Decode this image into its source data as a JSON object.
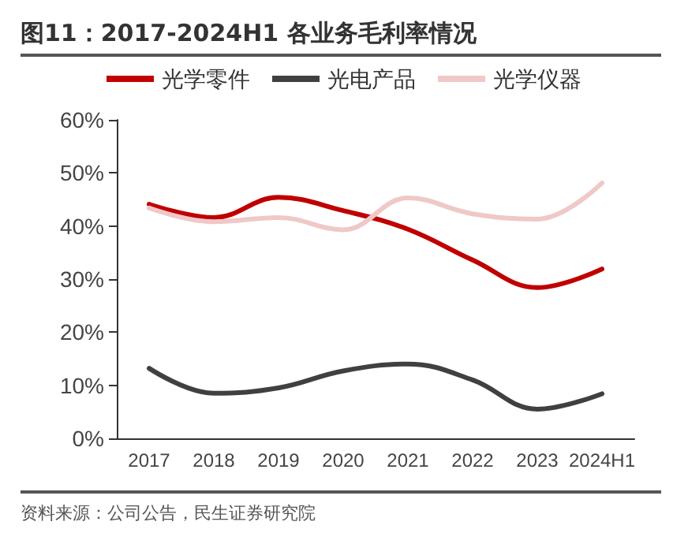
{
  "chart_data": {
    "type": "line",
    "title": "图11：2017-2024H1 各业务毛利率情况",
    "categories": [
      "2017",
      "2018",
      "2019",
      "2020",
      "2021",
      "2022",
      "2023",
      "2024H1"
    ],
    "series": [
      {
        "name": "光学零件",
        "color": "#c00000",
        "values": [
          44.1,
          41.6,
          45.4,
          42.9,
          39.4,
          33.6,
          28.4,
          31.9
        ]
      },
      {
        "name": "光电产品",
        "color": "#404040",
        "values": [
          13.2,
          8.5,
          9.5,
          12.7,
          14.0,
          11.0,
          5.5,
          8.4
        ]
      },
      {
        "name": "光学仪器",
        "color": "#f0c8c8",
        "values": [
          43.4,
          40.8,
          41.6,
          39.3,
          45.3,
          42.3,
          41.3,
          48.1
        ]
      }
    ],
    "ylim": [
      0,
      60
    ],
    "yticks": [
      {
        "value": 0,
        "label": "0%"
      },
      {
        "value": 10,
        "label": "10%"
      },
      {
        "value": 20,
        "label": "20%"
      },
      {
        "value": 30,
        "label": "30%"
      },
      {
        "value": 40,
        "label": "40%"
      },
      {
        "value": 50,
        "label": "50%"
      },
      {
        "value": 60,
        "label": "60%"
      }
    ],
    "grid": false,
    "legend": "top",
    "marker": "none",
    "line_style": "solid",
    "annotations": [
      "资料来源：公司公告，民生证券研究院"
    ]
  }
}
